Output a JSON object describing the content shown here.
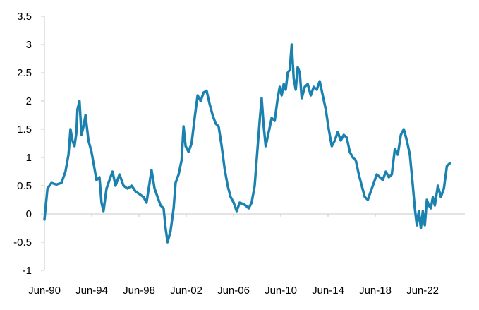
{
  "chart_data": {
    "type": "line",
    "title": "",
    "xlabel": "",
    "ylabel": "",
    "x_tick_labels": [
      "Jun-90",
      "Jun-94",
      "Jun-98",
      "Jun-02",
      "Jun-06",
      "Jun-10",
      "Jun-14",
      "Jun-18",
      "Jun-22"
    ],
    "y_tick_labels": [
      "3.5",
      "3",
      "2.5",
      "2",
      "1.5",
      "1",
      "0.5",
      "0",
      "-0.5",
      "-1"
    ],
    "ylim": [
      -1,
      3.5
    ],
    "xlim": [
      "1990-06",
      "2025-06"
    ],
    "grid": false,
    "legend": "none",
    "series": [
      {
        "color": "#1B82B0",
        "points": [
          [
            "1990-06",
            -0.1
          ],
          [
            "1990-09",
            0.45
          ],
          [
            "1991-01",
            0.55
          ],
          [
            "1991-06",
            0.52
          ],
          [
            "1991-11",
            0.55
          ],
          [
            "1992-03",
            0.75
          ],
          [
            "1992-06",
            1.05
          ],
          [
            "1992-08",
            1.5
          ],
          [
            "1992-10",
            1.3
          ],
          [
            "1992-12",
            1.2
          ],
          [
            "1993-02",
            1.45
          ],
          [
            "1993-03",
            1.85
          ],
          [
            "1993-05",
            2.0
          ],
          [
            "1993-07",
            1.4
          ],
          [
            "1993-09",
            1.55
          ],
          [
            "1993-11",
            1.75
          ],
          [
            "1994-02",
            1.3
          ],
          [
            "1994-05",
            1.1
          ],
          [
            "1994-08",
            0.8
          ],
          [
            "1994-10",
            0.6
          ],
          [
            "1995-01",
            0.65
          ],
          [
            "1995-03",
            0.2
          ],
          [
            "1995-05",
            0.05
          ],
          [
            "1995-08",
            0.45
          ],
          [
            "1995-11",
            0.6
          ],
          [
            "1996-02",
            0.75
          ],
          [
            "1996-05",
            0.5
          ],
          [
            "1996-09",
            0.7
          ],
          [
            "1997-01",
            0.5
          ],
          [
            "1997-05",
            0.45
          ],
          [
            "1997-09",
            0.5
          ],
          [
            "1998-01",
            0.4
          ],
          [
            "1998-05",
            0.35
          ],
          [
            "1998-09",
            0.3
          ],
          [
            "1998-12",
            0.2
          ],
          [
            "1999-03",
            0.55
          ],
          [
            "1999-05",
            0.78
          ],
          [
            "1999-08",
            0.45
          ],
          [
            "1999-11",
            0.3
          ],
          [
            "2000-02",
            0.15
          ],
          [
            "2000-05",
            0.1
          ],
          [
            "2000-07",
            -0.25
          ],
          [
            "2000-09",
            -0.5
          ],
          [
            "2000-12",
            -0.3
          ],
          [
            "2001-03",
            0.1
          ],
          [
            "2001-05",
            0.55
          ],
          [
            "2001-08",
            0.7
          ],
          [
            "2001-11",
            0.95
          ],
          [
            "2002-01",
            1.55
          ],
          [
            "2002-03",
            1.2
          ],
          [
            "2002-06",
            1.1
          ],
          [
            "2002-09",
            1.25
          ],
          [
            "2002-12",
            1.7
          ],
          [
            "2003-03",
            2.1
          ],
          [
            "2003-06",
            2.0
          ],
          [
            "2003-09",
            2.15
          ],
          [
            "2003-12",
            2.18
          ],
          [
            "2004-03",
            1.95
          ],
          [
            "2004-06",
            1.75
          ],
          [
            "2004-09",
            1.6
          ],
          [
            "2004-12",
            1.55
          ],
          [
            "2005-03",
            1.2
          ],
          [
            "2005-06",
            0.8
          ],
          [
            "2005-09",
            0.5
          ],
          [
            "2005-12",
            0.3
          ],
          [
            "2006-03",
            0.2
          ],
          [
            "2006-06",
            0.05
          ],
          [
            "2006-09",
            0.2
          ],
          [
            "2006-12",
            0.18
          ],
          [
            "2007-03",
            0.15
          ],
          [
            "2007-06",
            0.1
          ],
          [
            "2007-09",
            0.2
          ],
          [
            "2007-12",
            0.5
          ],
          [
            "2008-03",
            1.2
          ],
          [
            "2008-05",
            1.65
          ],
          [
            "2008-07",
            2.05
          ],
          [
            "2008-09",
            1.55
          ],
          [
            "2008-11",
            1.2
          ],
          [
            "2009-02",
            1.45
          ],
          [
            "2009-05",
            1.7
          ],
          [
            "2009-08",
            1.65
          ],
          [
            "2009-11",
            2.05
          ],
          [
            "2010-01",
            2.25
          ],
          [
            "2010-03",
            2.1
          ],
          [
            "2010-05",
            2.3
          ],
          [
            "2010-07",
            2.2
          ],
          [
            "2010-09",
            2.5
          ],
          [
            "2010-11",
            2.55
          ],
          [
            "2011-01",
            3.0
          ],
          [
            "2011-03",
            2.4
          ],
          [
            "2011-05",
            2.2
          ],
          [
            "2011-07",
            2.6
          ],
          [
            "2011-09",
            2.5
          ],
          [
            "2011-11",
            2.05
          ],
          [
            "2012-02",
            2.25
          ],
          [
            "2012-05",
            2.3
          ],
          [
            "2012-08",
            2.1
          ],
          [
            "2012-11",
            2.25
          ],
          [
            "2013-02",
            2.2
          ],
          [
            "2013-05",
            2.35
          ],
          [
            "2013-08",
            2.1
          ],
          [
            "2013-11",
            1.85
          ],
          [
            "2014-02",
            1.5
          ],
          [
            "2014-05",
            1.2
          ],
          [
            "2014-08",
            1.3
          ],
          [
            "2014-11",
            1.45
          ],
          [
            "2015-02",
            1.3
          ],
          [
            "2015-05",
            1.4
          ],
          [
            "2015-08",
            1.35
          ],
          [
            "2015-11",
            1.1
          ],
          [
            "2016-02",
            1.0
          ],
          [
            "2016-05",
            0.95
          ],
          [
            "2016-08",
            0.7
          ],
          [
            "2016-11",
            0.5
          ],
          [
            "2017-02",
            0.3
          ],
          [
            "2017-05",
            0.25
          ],
          [
            "2017-08",
            0.4
          ],
          [
            "2017-11",
            0.55
          ],
          [
            "2018-02",
            0.7
          ],
          [
            "2018-05",
            0.65
          ],
          [
            "2018-08",
            0.6
          ],
          [
            "2018-11",
            0.75
          ],
          [
            "2019-02",
            0.65
          ],
          [
            "2019-05",
            0.7
          ],
          [
            "2019-08",
            1.15
          ],
          [
            "2019-11",
            1.05
          ],
          [
            "2020-02",
            1.4
          ],
          [
            "2020-05",
            1.5
          ],
          [
            "2020-08",
            1.3
          ],
          [
            "2020-11",
            1.05
          ],
          [
            "2021-02",
            0.5
          ],
          [
            "2021-04",
            0.1
          ],
          [
            "2021-06",
            -0.2
          ],
          [
            "2021-08",
            0.05
          ],
          [
            "2021-10",
            -0.25
          ],
          [
            "2021-12",
            0.05
          ],
          [
            "2022-02",
            -0.2
          ],
          [
            "2022-04",
            0.25
          ],
          [
            "2022-06",
            0.15
          ],
          [
            "2022-08",
            0.1
          ],
          [
            "2022-10",
            0.3
          ],
          [
            "2022-12",
            0.15
          ],
          [
            "2023-03",
            0.5
          ],
          [
            "2023-06",
            0.3
          ],
          [
            "2023-09",
            0.45
          ],
          [
            "2023-12",
            0.85
          ],
          [
            "2024-03",
            0.9
          ]
        ]
      }
    ]
  }
}
